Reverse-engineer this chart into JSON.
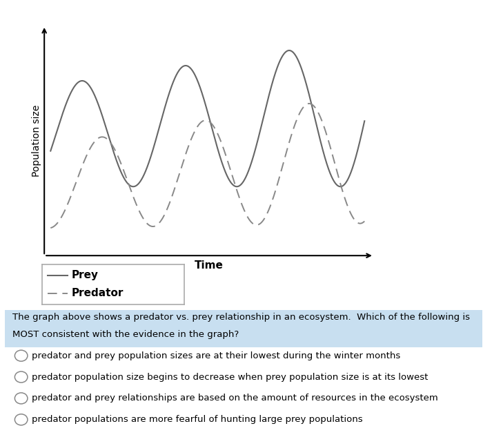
{
  "ylabel": "Population size",
  "xlabel": "Time",
  "prey_color": "#666666",
  "predator_color": "#888888",
  "bg_color": "#ffffff",
  "question_bg": "#c8dff0",
  "question_text": "The graph above shows a predator vs. prey relationship in an ecosystem.  Which of the following is MOST consistent with the evidence in the graph?",
  "options": [
    "predator and prey population sizes are at their lowest during the winter months",
    "predator population size begins to decrease when prey population size is at its lowest",
    "predator and prey relationships are based on the amount of resources in the ecosystem",
    "predator populations are more fearful of hunting large prey populations"
  ],
  "legend_prey": "Prey",
  "legend_predator": "Predator",
  "ylabel_fontsize": 10,
  "xlabel_fontsize": 11,
  "legend_fontsize": 11,
  "question_fontsize": 9.5,
  "option_fontsize": 9.5
}
